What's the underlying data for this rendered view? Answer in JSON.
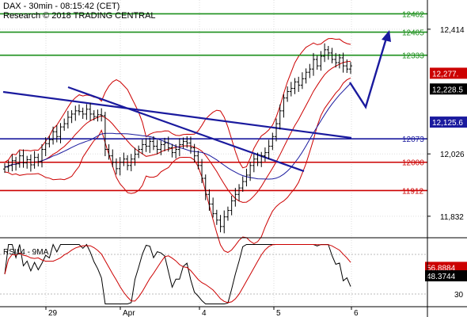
{
  "header": {
    "line1": "DAX - 30min - 08:15:42 (CET)",
    "line2": "Research © 2018 TRADING CENTRAL"
  },
  "chart_data": {
    "type": "candlestick",
    "symbol": "DAX",
    "timeframe": "30min",
    "ylim": [
      11770,
      12500
    ],
    "y_ticks": [
      {
        "value": 12414,
        "label": "12,414"
      },
      {
        "value": 12026,
        "label": "12,026"
      },
      {
        "value": 11832,
        "label": "11,832"
      }
    ],
    "x_ticks": [
      "29",
      "Apr",
      "4",
      "5",
      "6"
    ],
    "levels": [
      {
        "value": 12462,
        "label": "12462",
        "color": "#1b8f1b"
      },
      {
        "value": 12405,
        "label": "12405",
        "color": "#1b8f1b"
      },
      {
        "value": 12333,
        "label": "12333",
        "color": "#1b8f1b"
      },
      {
        "value": 12073,
        "label": "12073",
        "color": "#1a1a9e"
      },
      {
        "value": 12000,
        "label": "12000",
        "color": "#cc0000"
      },
      {
        "value": 11912,
        "label": "11912",
        "color": "#cc0000"
      }
    ],
    "badges": [
      {
        "value": 12277,
        "label": "12,277.",
        "color": "#cc0000"
      },
      {
        "value": 12228,
        "label": "12,228.5",
        "color": "#000000"
      },
      {
        "value": 12125,
        "label": "12,125.6",
        "color": "#1a1a9e"
      }
    ],
    "close_series": [
      11985,
      11990,
      12005,
      11995,
      12020,
      11998,
      12008,
      11992,
      12015,
      12002,
      12040,
      12058,
      12070,
      12095,
      12080,
      12110,
      12120,
      12140,
      12150,
      12160,
      12158,
      12150,
      12165,
      12150,
      12142,
      12148,
      12145,
      12040,
      12020,
      12000,
      11980,
      12000,
      12010,
      11990,
      12010,
      12025,
      12040,
      12055,
      12050,
      12065,
      12050,
      12040,
      12055,
      12060,
      12045,
      12030,
      12040,
      12055,
      12065,
      12060,
      12045,
      12020,
      11990,
      11950,
      11900,
      11870,
      11840,
      11820,
      11800,
      11830,
      11850,
      11880,
      11900,
      11920,
      11940,
      11960,
      11990,
      12010,
      12000,
      12020,
      12030,
      12050,
      12080,
      12120,
      12160,
      12200,
      12220,
      12230,
      12250,
      12240,
      12260,
      12280,
      12290,
      12320,
      12300,
      12330,
      12350,
      12340,
      12320,
      12310,
      12325,
      12300,
      12290,
      12300
    ],
    "rsi_panel": {
      "title": "RSI14 - 9MA",
      "y_ticks": [
        {
          "value": 30,
          "label": "30"
        }
      ],
      "badges": [
        {
          "value": 56.8884,
          "label": "56.8884",
          "color": "#cc0000"
        },
        {
          "value": 48.3744,
          "label": "48.3744",
          "color": "#000000"
        }
      ]
    }
  }
}
